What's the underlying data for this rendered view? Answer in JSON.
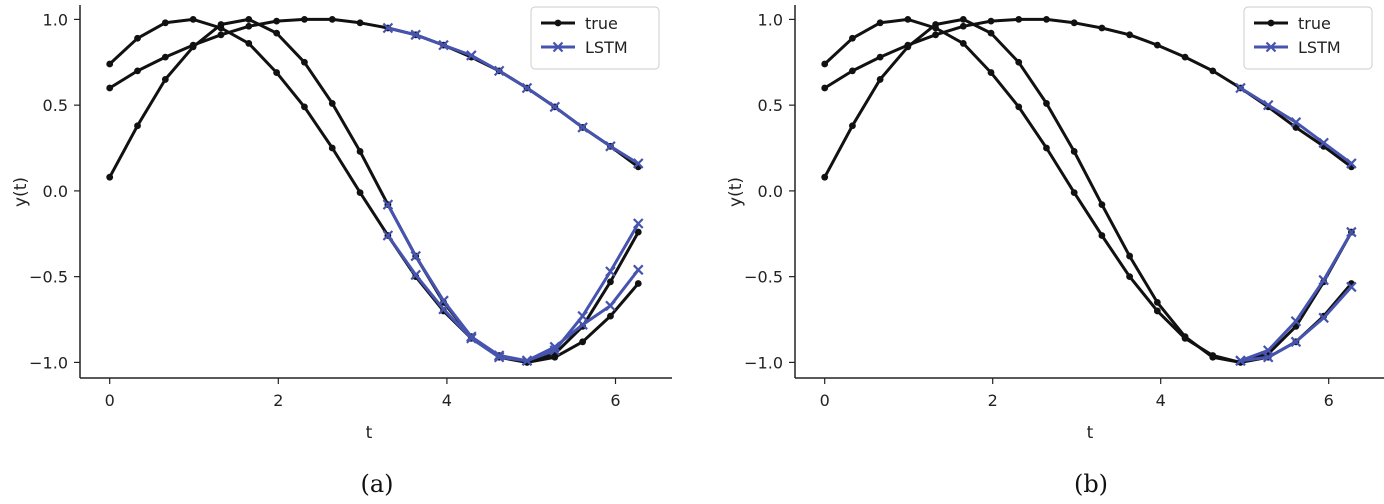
{
  "chart_data": [
    {
      "type": "line",
      "caption": "(a)",
      "xlabel": "t",
      "ylabel": "y(t)",
      "xlim": [
        -0.35,
        6.55
      ],
      "ylim": [
        -1.1,
        1.07
      ],
      "xticks": [
        0,
        2,
        4,
        6
      ],
      "yticks": [
        -1.0,
        -0.5,
        0.0,
        0.5,
        1.0
      ],
      "ytick_labels": [
        "−1.0",
        "−0.5",
        "0.0",
        "0.5",
        "1.0"
      ],
      "legend": {
        "position": "top-right",
        "entries": [
          {
            "label": "true",
            "color": "#111111",
            "marker": "dot"
          },
          {
            "label": "LSTM",
            "color": "#4654b0",
            "marker": "x"
          }
        ]
      },
      "series": [
        {
          "name": "true",
          "color": "#111111",
          "marker": "dot",
          "x": [
            0,
            0.33,
            0.66,
            0.99,
            1.32,
            1.65,
            1.98,
            2.31,
            2.64,
            2.97,
            3.3,
            3.63,
            3.96,
            4.29,
            4.62,
            4.95,
            5.28,
            5.61,
            5.94,
            6.27
          ],
          "y": [
            0.08,
            0.38,
            0.65,
            0.84,
            0.97,
            1.0,
            0.92,
            0.75,
            0.51,
            0.23,
            -0.08,
            -0.38,
            -0.65,
            -0.85,
            -0.97,
            -1.0,
            -0.95,
            -0.79,
            -0.53,
            -0.24
          ]
        },
        {
          "name": "true",
          "color": "#111111",
          "marker": "dot",
          "x": [
            0,
            0.33,
            0.66,
            0.99,
            1.32,
            1.65,
            1.98,
            2.31,
            2.64,
            2.97,
            3.3,
            3.63,
            3.96,
            4.29,
            4.62,
            4.95,
            5.28,
            5.61,
            5.94,
            6.27
          ],
          "y": [
            0.74,
            0.89,
            0.98,
            1.0,
            0.95,
            0.86,
            0.69,
            0.49,
            0.25,
            -0.01,
            -0.26,
            -0.5,
            -0.7,
            -0.86,
            -0.96,
            -1.0,
            -0.97,
            -0.88,
            -0.73,
            -0.54
          ]
        },
        {
          "name": "true",
          "color": "#111111",
          "marker": "dot",
          "x": [
            0,
            0.33,
            0.66,
            0.99,
            1.32,
            1.65,
            1.98,
            2.31,
            2.64,
            2.97,
            3.3,
            3.63,
            3.96,
            4.29,
            4.62,
            4.95,
            5.28,
            5.61,
            5.94,
            6.27
          ],
          "y": [
            0.6,
            0.7,
            0.78,
            0.85,
            0.91,
            0.96,
            0.99,
            1.0,
            1.0,
            0.98,
            0.95,
            0.91,
            0.85,
            0.78,
            0.7,
            0.6,
            0.49,
            0.37,
            0.26,
            0.14
          ]
        },
        {
          "name": "LSTM",
          "color": "#4654b0",
          "marker": "x",
          "x": [
            3.3,
            3.63,
            3.96,
            4.29,
            4.62,
            4.95,
            5.28,
            5.61,
            5.94,
            6.27
          ],
          "y": [
            -0.08,
            -0.38,
            -0.64,
            -0.85,
            -0.96,
            -0.99,
            -0.93,
            -0.73,
            -0.47,
            -0.19
          ]
        },
        {
          "name": "LSTM",
          "color": "#4654b0",
          "marker": "x",
          "x": [
            3.3,
            3.63,
            3.96,
            4.29,
            4.62,
            4.95,
            5.28,
            5.61,
            5.94,
            6.27
          ],
          "y": [
            -0.26,
            -0.49,
            -0.69,
            -0.86,
            -0.97,
            -0.99,
            -0.91,
            -0.78,
            -0.67,
            -0.46
          ]
        },
        {
          "name": "LSTM",
          "color": "#4654b0",
          "marker": "x",
          "x": [
            3.3,
            3.63,
            3.96,
            4.29,
            4.62,
            4.95,
            5.28,
            5.61,
            5.94,
            6.27
          ],
          "y": [
            0.95,
            0.91,
            0.85,
            0.79,
            0.7,
            0.6,
            0.49,
            0.37,
            0.26,
            0.16
          ]
        }
      ]
    },
    {
      "type": "line",
      "caption": "(b)",
      "xlabel": "t",
      "ylabel": "y(t)",
      "xlim": [
        -0.35,
        6.55
      ],
      "ylim": [
        -1.1,
        1.07
      ],
      "xticks": [
        0,
        2,
        4,
        6
      ],
      "yticks": [
        -1.0,
        -0.5,
        0.0,
        0.5,
        1.0
      ],
      "ytick_labels": [
        "−1.0",
        "−0.5",
        "0.0",
        "0.5",
        "1.0"
      ],
      "legend": {
        "position": "top-right",
        "entries": [
          {
            "label": "true",
            "color": "#111111",
            "marker": "dot"
          },
          {
            "label": "LSTM",
            "color": "#4654b0",
            "marker": "x"
          }
        ]
      },
      "series": [
        {
          "name": "true",
          "color": "#111111",
          "marker": "dot",
          "x": [
            0,
            0.33,
            0.66,
            0.99,
            1.32,
            1.65,
            1.98,
            2.31,
            2.64,
            2.97,
            3.3,
            3.63,
            3.96,
            4.29,
            4.62,
            4.95,
            5.28,
            5.61,
            5.94,
            6.27
          ],
          "y": [
            0.08,
            0.38,
            0.65,
            0.84,
            0.97,
            1.0,
            0.92,
            0.75,
            0.51,
            0.23,
            -0.08,
            -0.38,
            -0.65,
            -0.85,
            -0.97,
            -1.0,
            -0.95,
            -0.79,
            -0.53,
            -0.24
          ]
        },
        {
          "name": "true",
          "color": "#111111",
          "marker": "dot",
          "x": [
            0,
            0.33,
            0.66,
            0.99,
            1.32,
            1.65,
            1.98,
            2.31,
            2.64,
            2.97,
            3.3,
            3.63,
            3.96,
            4.29,
            4.62,
            4.95,
            5.28,
            5.61,
            5.94,
            6.27
          ],
          "y": [
            0.74,
            0.89,
            0.98,
            1.0,
            0.95,
            0.86,
            0.69,
            0.49,
            0.25,
            -0.01,
            -0.26,
            -0.5,
            -0.7,
            -0.86,
            -0.96,
            -1.0,
            -0.97,
            -0.88,
            -0.73,
            -0.54
          ]
        },
        {
          "name": "true",
          "color": "#111111",
          "marker": "dot",
          "x": [
            0,
            0.33,
            0.66,
            0.99,
            1.32,
            1.65,
            1.98,
            2.31,
            2.64,
            2.97,
            3.3,
            3.63,
            3.96,
            4.29,
            4.62,
            4.95,
            5.28,
            5.61,
            5.94,
            6.27
          ],
          "y": [
            0.6,
            0.7,
            0.78,
            0.85,
            0.91,
            0.96,
            0.99,
            1.0,
            1.0,
            0.98,
            0.95,
            0.91,
            0.85,
            0.78,
            0.7,
            0.6,
            0.49,
            0.37,
            0.26,
            0.14
          ]
        },
        {
          "name": "LSTM",
          "color": "#4654b0",
          "marker": "x",
          "x": [
            4.95,
            5.28,
            5.61,
            5.94,
            6.27
          ],
          "y": [
            -0.99,
            -0.93,
            -0.76,
            -0.52,
            -0.24
          ]
        },
        {
          "name": "LSTM",
          "color": "#4654b0",
          "marker": "x",
          "x": [
            4.95,
            5.28,
            5.61,
            5.94,
            6.27
          ],
          "y": [
            -0.99,
            -0.97,
            -0.88,
            -0.74,
            -0.56
          ]
        },
        {
          "name": "LSTM",
          "color": "#4654b0",
          "marker": "x",
          "x": [
            4.95,
            5.28,
            5.61,
            5.94,
            6.27
          ],
          "y": [
            0.6,
            0.5,
            0.4,
            0.28,
            0.16
          ]
        }
      ]
    }
  ]
}
